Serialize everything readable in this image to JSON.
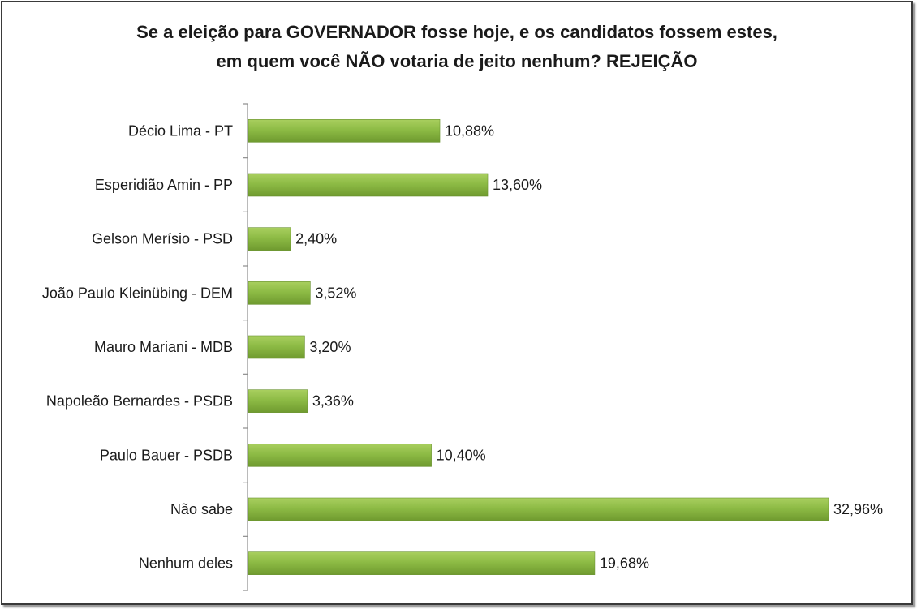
{
  "chart_data": {
    "type": "bar",
    "orientation": "horizontal",
    "title_line1": "Se a eleição para GOVERNADOR fosse hoje, e os candidatos fossem estes,",
    "title_line2": "em quem você NÃO votaria de jeito nenhum? REJEIÇÃO",
    "categories": [
      "Décio Lima - PT",
      "Esperidião Amin - PP",
      "Gelson Merísio - PSD",
      "João Paulo Kleinübing - DEM",
      "Mauro Mariani - MDB",
      "Napoleão Bernardes - PSDB",
      "Paulo Bauer - PSDB",
      "Não sabe",
      "Nenhum deles"
    ],
    "values": [
      10.88,
      13.6,
      2.4,
      3.52,
      3.2,
      3.36,
      10.4,
      32.96,
      19.68
    ],
    "value_labels": [
      "10,88%",
      "13,60%",
      "2,40%",
      "3,52%",
      "3,20%",
      "3,36%",
      "10,40%",
      "32,96%",
      "19,68%"
    ],
    "xlim": [
      0,
      32.96
    ],
    "grid": false,
    "legend": "none",
    "bar_color": "#8dbb45"
  }
}
